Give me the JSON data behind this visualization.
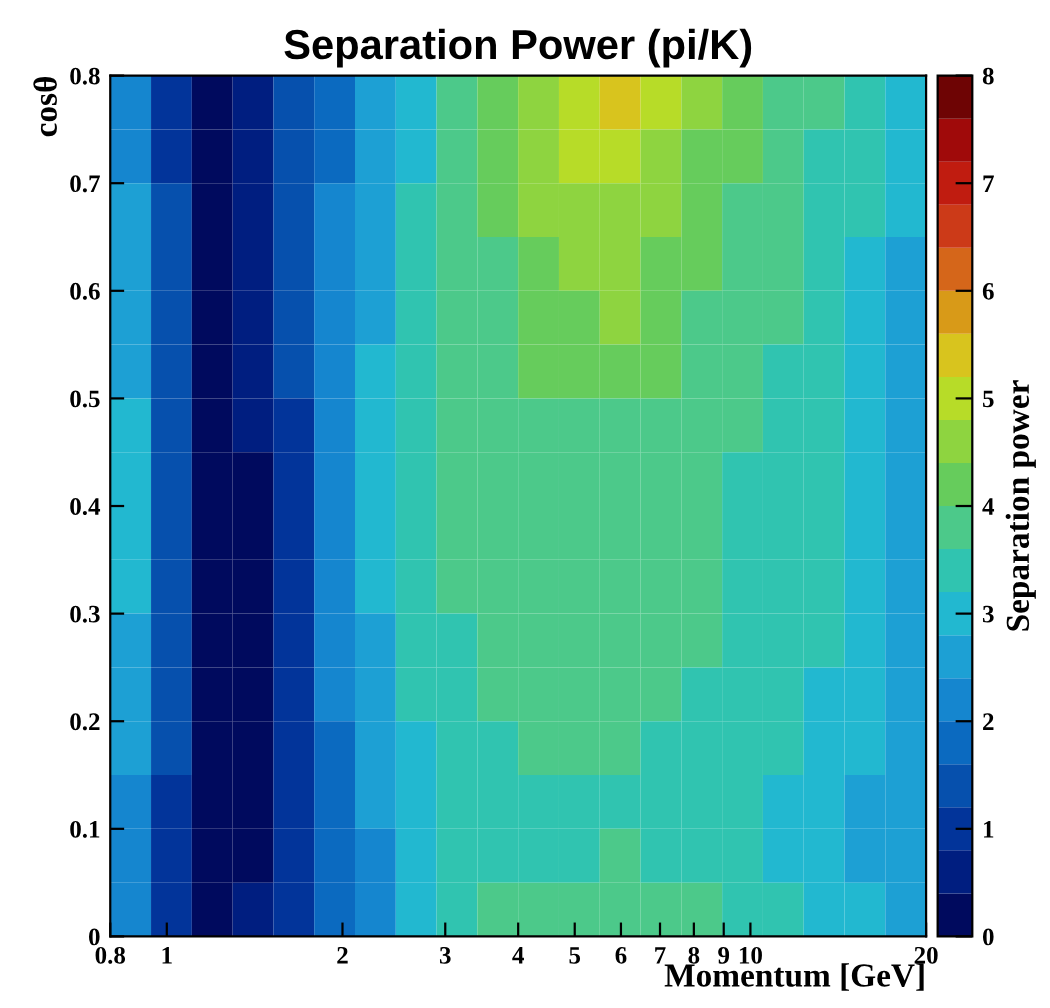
{
  "chart_data": {
    "type": "heatmap",
    "title": "Separation Power (pi/K)",
    "xlabel": "Momentum [GeV]",
    "ylabel": "cosθ",
    "clabel": "Separation power",
    "log": "x",
    "cells": [
      [
        2.2,
        1.0,
        0.2,
        0.6,
        1.4,
        1.8,
        2.6,
        3.0,
        3.8,
        4.2,
        4.6,
        5.0,
        5.4,
        5.0,
        4.6,
        4.2,
        3.8,
        3.8,
        3.4,
        3.0
      ],
      [
        2.2,
        1.0,
        0.2,
        0.6,
        1.4,
        1.8,
        2.6,
        3.0,
        3.8,
        4.2,
        4.6,
        5.0,
        5.0,
        4.6,
        4.2,
        4.2,
        3.8,
        3.4,
        3.4,
        3.0
      ],
      [
        2.6,
        1.4,
        0.2,
        0.6,
        1.4,
        2.2,
        2.6,
        3.4,
        3.8,
        4.2,
        4.6,
        4.6,
        4.6,
        4.6,
        4.2,
        3.8,
        3.8,
        3.4,
        3.4,
        3.0
      ],
      [
        2.6,
        1.4,
        0.2,
        0.6,
        1.4,
        2.2,
        2.6,
        3.4,
        3.8,
        3.8,
        4.2,
        4.6,
        4.6,
        4.2,
        4.2,
        3.8,
        3.8,
        3.4,
        3.0,
        2.6
      ],
      [
        2.6,
        1.4,
        0.2,
        0.6,
        1.4,
        2.2,
        2.6,
        3.4,
        3.8,
        3.8,
        4.2,
        4.2,
        4.6,
        4.2,
        3.8,
        3.8,
        3.8,
        3.4,
        3.0,
        2.6
      ],
      [
        2.6,
        1.4,
        0.2,
        0.6,
        1.4,
        2.2,
        3.0,
        3.4,
        3.8,
        3.8,
        4.2,
        4.2,
        4.2,
        4.2,
        3.8,
        3.8,
        3.4,
        3.4,
        3.0,
        2.6
      ],
      [
        3.0,
        1.4,
        0.2,
        0.6,
        1.0,
        2.2,
        3.0,
        3.4,
        3.8,
        3.8,
        3.8,
        3.8,
        3.8,
        3.8,
        3.8,
        3.8,
        3.4,
        3.4,
        3.0,
        2.6
      ],
      [
        3.0,
        1.4,
        0.2,
        0.2,
        1.0,
        2.2,
        3.0,
        3.4,
        3.8,
        3.8,
        3.8,
        3.8,
        3.8,
        3.8,
        3.8,
        3.4,
        3.4,
        3.4,
        3.0,
        2.6
      ],
      [
        3.0,
        1.4,
        0.2,
        0.2,
        1.0,
        2.2,
        3.0,
        3.4,
        3.8,
        3.8,
        3.8,
        3.8,
        3.8,
        3.8,
        3.8,
        3.4,
        3.4,
        3.4,
        3.0,
        2.6
      ],
      [
        3.0,
        1.4,
        0.2,
        0.2,
        1.0,
        2.2,
        3.0,
        3.4,
        3.8,
        3.8,
        3.8,
        3.8,
        3.8,
        3.8,
        3.8,
        3.4,
        3.4,
        3.4,
        3.0,
        2.6
      ],
      [
        2.6,
        1.4,
        0.2,
        0.2,
        1.0,
        2.2,
        2.6,
        3.4,
        3.4,
        3.8,
        3.8,
        3.8,
        3.8,
        3.8,
        3.8,
        3.4,
        3.4,
        3.4,
        3.0,
        2.6
      ],
      [
        2.6,
        1.4,
        0.2,
        0.2,
        1.0,
        2.2,
        2.6,
        3.4,
        3.4,
        3.8,
        3.8,
        3.8,
        3.8,
        3.8,
        3.4,
        3.4,
        3.4,
        3.0,
        3.0,
        2.6
      ],
      [
        2.6,
        1.4,
        0.2,
        0.2,
        1.0,
        1.8,
        2.6,
        3.0,
        3.4,
        3.4,
        3.8,
        3.8,
        3.8,
        3.4,
        3.4,
        3.4,
        3.4,
        3.0,
        3.0,
        2.6
      ],
      [
        2.2,
        1.0,
        0.2,
        0.2,
        1.0,
        1.8,
        2.6,
        3.0,
        3.4,
        3.4,
        3.4,
        3.4,
        3.4,
        3.4,
        3.4,
        3.4,
        3.0,
        3.0,
        2.6,
        2.6
      ],
      [
        2.2,
        1.0,
        0.2,
        0.2,
        1.0,
        1.8,
        2.2,
        3.0,
        3.4,
        3.4,
        3.4,
        3.4,
        3.8,
        3.4,
        3.4,
        3.4,
        3.0,
        3.0,
        2.6,
        2.6
      ],
      [
        2.2,
        1.0,
        0.2,
        0.6,
        1.0,
        1.8,
        2.2,
        3.0,
        3.4,
        3.8,
        3.8,
        3.8,
        3.8,
        3.8,
        3.8,
        3.4,
        3.4,
        3.0,
        3.0,
        2.6
      ]
    ],
    "xlim": [
      0.8,
      20
    ],
    "xticks": [
      0.8,
      1,
      2,
      3,
      4,
      5,
      6,
      7,
      8,
      9,
      10,
      20
    ],
    "ylim": [
      0,
      0.8
    ],
    "yticks": [
      0,
      0.1,
      0.2,
      0.3,
      0.4,
      0.5,
      0.6,
      0.7,
      0.8
    ],
    "clim": [
      0,
      8
    ],
    "cticks": [
      0,
      1,
      2,
      3,
      4,
      5,
      6,
      7,
      8
    ]
  }
}
